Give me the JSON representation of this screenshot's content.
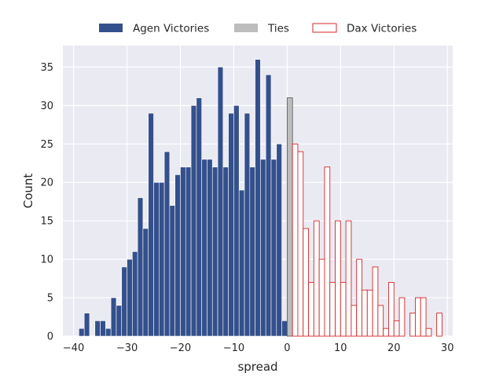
{
  "chart_data": {
    "type": "bar",
    "title": "",
    "xlabel": "spread",
    "ylabel": "Count",
    "xlim": [
      -42.0,
      31.0
    ],
    "ylim": [
      0,
      37.8
    ],
    "xticks": [
      -40,
      -30,
      -20,
      -10,
      0,
      10,
      20,
      30
    ],
    "yticks": [
      0,
      5,
      10,
      15,
      20,
      25,
      30,
      35
    ],
    "grid": true,
    "legend_placement": "top-center",
    "bin_width": 1,
    "colors": {
      "agen": "#34508c",
      "ties": "#bdbdbd",
      "dax": "#d62728",
      "background": "#eaeaf2",
      "grid": "#ffffff"
    },
    "series": [
      {
        "name": "Agen Victories",
        "style": "filled",
        "x": [
          -39,
          -38,
          -37,
          -36,
          -35,
          -34,
          -33,
          -32,
          -31,
          -30,
          -29,
          -28,
          -27,
          -26,
          -25,
          -24,
          -23,
          -22,
          -21,
          -20,
          -19,
          -18,
          -17,
          -16,
          -15,
          -14,
          -13,
          -12,
          -11,
          -10,
          -9,
          -8,
          -7,
          -6,
          -5,
          -4,
          -3,
          -2,
          -1
        ],
        "values": [
          1,
          3,
          0,
          2,
          2,
          1,
          5,
          4,
          9,
          10,
          11,
          18,
          14,
          29,
          20,
          20,
          24,
          17,
          21,
          22,
          22,
          30,
          31,
          23,
          23,
          22,
          35,
          22,
          29,
          30,
          19,
          29,
          22,
          36,
          23,
          34,
          23,
          25,
          2
        ]
      },
      {
        "name": "Ties",
        "style": "filled",
        "x": [
          0
        ],
        "values": [
          31
        ]
      },
      {
        "name": "Dax Victories",
        "style": "outline",
        "x": [
          1,
          2,
          3,
          4,
          5,
          6,
          7,
          8,
          9,
          10,
          11,
          12,
          13,
          14,
          15,
          16,
          17,
          18,
          19,
          20,
          21,
          22,
          23,
          24,
          25,
          26,
          27,
          28
        ],
        "values": [
          25,
          24,
          14,
          7,
          15,
          10,
          22,
          7,
          15,
          7,
          15,
          4,
          10,
          6,
          6,
          9,
          4,
          1,
          7,
          2,
          5,
          0,
          3,
          5,
          5,
          1,
          0,
          3
        ]
      }
    ]
  }
}
